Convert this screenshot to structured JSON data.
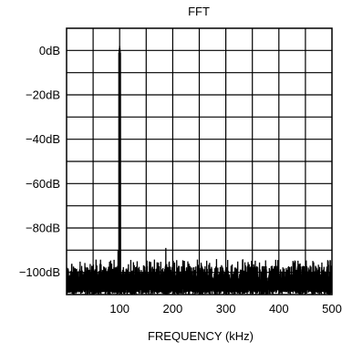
{
  "chart_data": {
    "type": "line",
    "title": "FFT",
    "xlabel": "FREQUENCY (kHz)",
    "ylabel": "",
    "xlim": [
      0,
      500
    ],
    "ylim": [
      -110,
      10
    ],
    "x_ticks": [
      {
        "value": 100,
        "label": "100"
      },
      {
        "value": 200,
        "label": "200"
      },
      {
        "value": 300,
        "label": "300"
      },
      {
        "value": 400,
        "label": "400"
      },
      {
        "value": 500,
        "label": "500"
      }
    ],
    "y_ticks": [
      {
        "value": 0,
        "label": "0dB"
      },
      {
        "value": -20,
        "label": "−20dB"
      },
      {
        "value": -40,
        "label": "−40dB"
      },
      {
        "value": -60,
        "label": "−60dB"
      },
      {
        "value": -80,
        "label": "−80dB"
      },
      {
        "value": -100,
        "label": "−100dB"
      }
    ],
    "grid": {
      "x_step": 50,
      "y_step": 10,
      "visible": true
    },
    "series": [
      {
        "color": "#000000",
        "noise_floor_db": -105,
        "noise_peak_db": -97,
        "peaks": [
          {
            "x": 100,
            "y": 2
          },
          {
            "x": 97,
            "y": -90
          },
          {
            "x": 187,
            "y": -89
          },
          {
            "x": 310,
            "y": -97
          },
          {
            "x": 440,
            "y": -96
          }
        ]
      }
    ]
  }
}
